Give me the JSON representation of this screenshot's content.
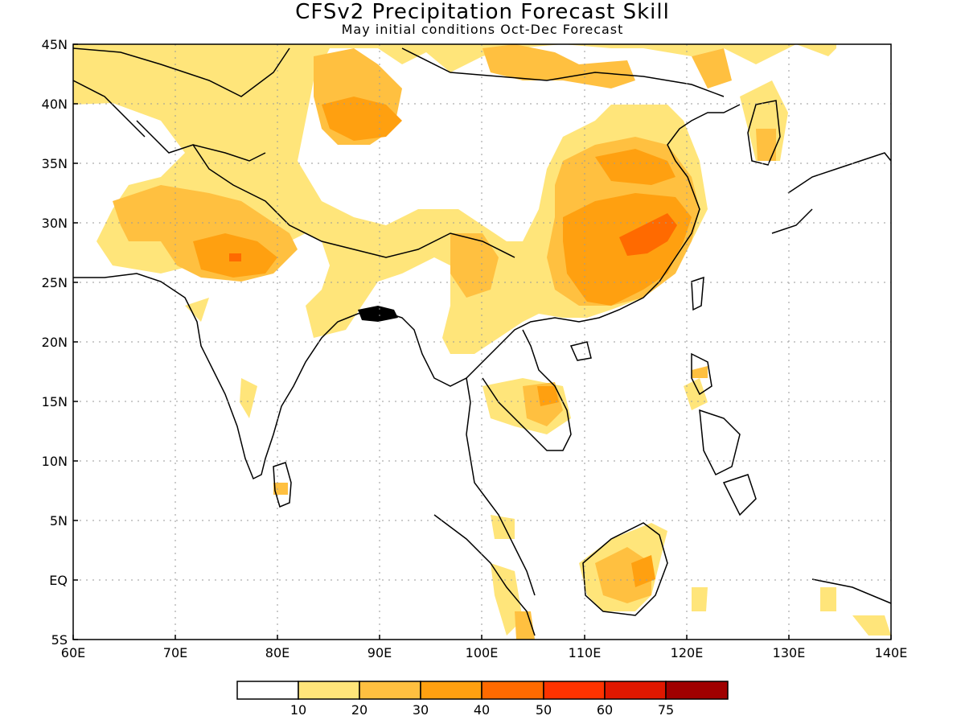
{
  "header": {
    "title": "CFSv2 Precipitation Forecast Skill",
    "subtitle": "May initial conditions  Oct-Dec Forecast"
  },
  "map": {
    "lon_range": [
      60,
      140
    ],
    "lat_range": [
      -5,
      45
    ],
    "lon_ticks": [
      "60E",
      "70E",
      "80E",
      "90E",
      "100E",
      "110E",
      "120E",
      "130E",
      "140E"
    ],
    "lat_ticks": [
      "45N",
      "40N",
      "35N",
      "30N",
      "25N",
      "20N",
      "15N",
      "10N",
      "5N",
      "EQ",
      "5S"
    ],
    "grid": "dotted"
  },
  "colorbar": {
    "colors": [
      "#ffffff",
      "#ffe57a",
      "#ffc040",
      "#ffa010",
      "#ff6a00",
      "#ff3300",
      "#e01800",
      "#a00000"
    ],
    "labels": [
      "10",
      "20",
      "30",
      "40",
      "50",
      "60",
      "75"
    ]
  }
}
